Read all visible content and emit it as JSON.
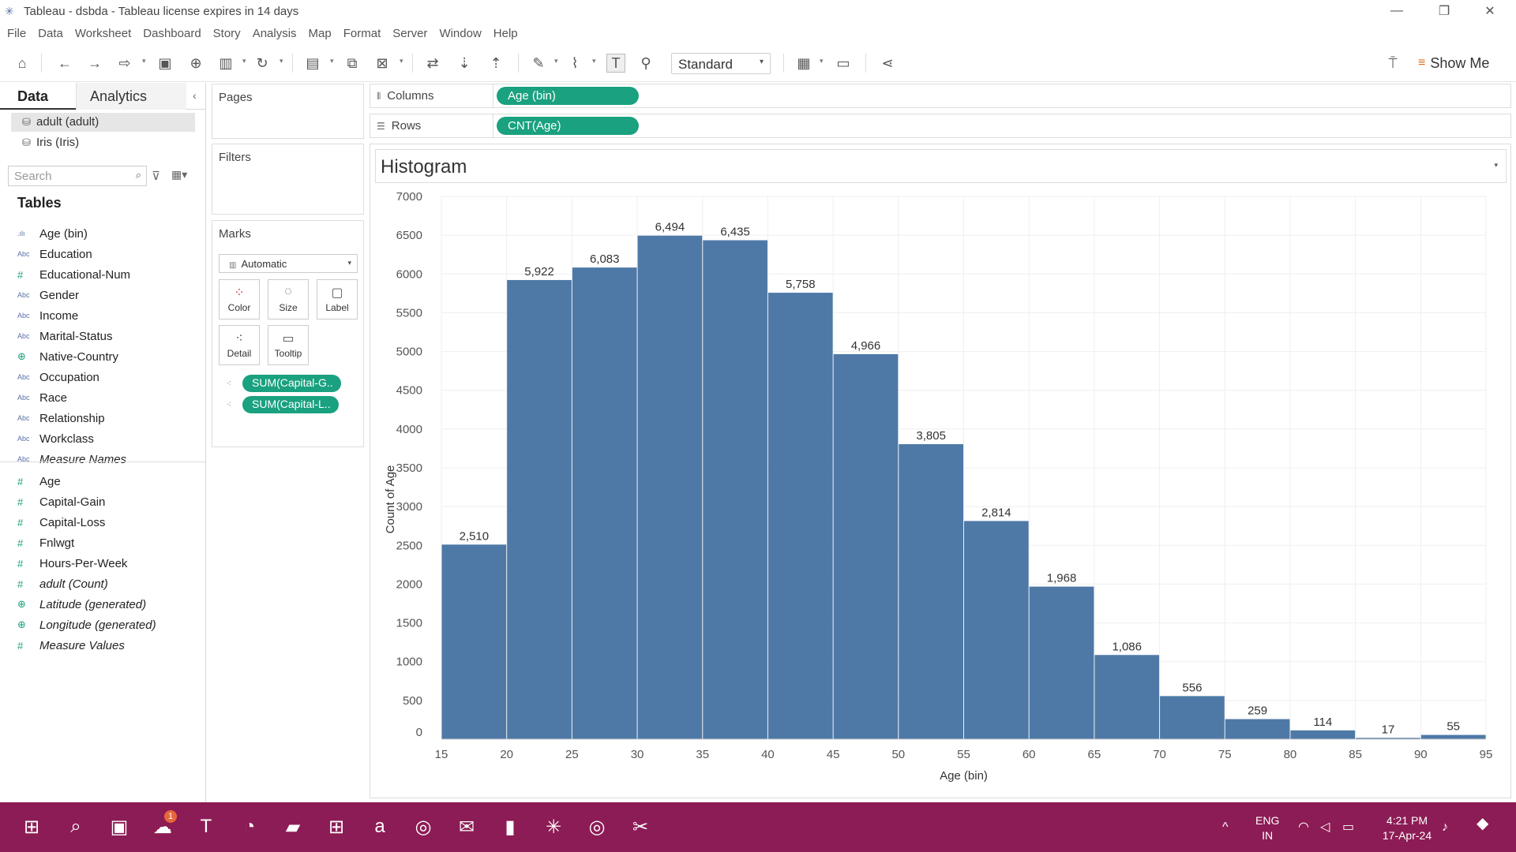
{
  "window": {
    "title": "Tableau - dsbda - Tableau license expires in 14 days",
    "minimize": "—",
    "restore": "❐",
    "close": "✕"
  },
  "menu": [
    "File",
    "Data",
    "Worksheet",
    "Dashboard",
    "Story",
    "Analysis",
    "Map",
    "Format",
    "Server",
    "Window",
    "Help"
  ],
  "toolbar": {
    "fit_value": "Standard",
    "show_me_label": "Show Me"
  },
  "data_pane": {
    "tab_data": "Data",
    "tab_analytics": "Analytics",
    "datasources": [
      "adult (adult)",
      "Iris (Iris)"
    ],
    "search_placeholder": "Search",
    "tables_heading": "Tables",
    "dimensions": [
      {
        "label": "Age (bin)",
        "icon": "bin-icon"
      },
      {
        "label": "Education",
        "icon": "string-icon"
      },
      {
        "label": "Educational-Num",
        "icon": "number-icon"
      },
      {
        "label": "Gender",
        "icon": "string-icon"
      },
      {
        "label": "Income",
        "icon": "string-icon"
      },
      {
        "label": "Marital-Status",
        "icon": "string-icon"
      },
      {
        "label": "Native-Country",
        "icon": "globe-icon"
      },
      {
        "label": "Occupation",
        "icon": "string-icon"
      },
      {
        "label": "Race",
        "icon": "string-icon"
      },
      {
        "label": "Relationship",
        "icon": "string-icon"
      },
      {
        "label": "Workclass",
        "icon": "string-icon"
      },
      {
        "label": "Measure Names",
        "icon": "string-icon"
      }
    ],
    "measures": [
      {
        "label": "Age",
        "icon": "number-icon"
      },
      {
        "label": "Capital-Gain",
        "icon": "number-icon"
      },
      {
        "label": "Capital-Loss",
        "icon": "number-icon"
      },
      {
        "label": "Fnlwgt",
        "icon": "number-icon"
      },
      {
        "label": "Hours-Per-Week",
        "icon": "number-icon"
      },
      {
        "label": "adult (Count)",
        "icon": "number-icon"
      },
      {
        "label": "Latitude (generated)",
        "icon": "globe-icon"
      },
      {
        "label": "Longitude (generated)",
        "icon": "globe-icon"
      },
      {
        "label": "Measure Values",
        "icon": "number-icon"
      }
    ]
  },
  "cards": {
    "pages": "Pages",
    "filters": "Filters",
    "marks": "Marks",
    "mark_type": "Automatic",
    "mark_buttons": [
      "Color",
      "Size",
      "Label",
      "Detail",
      "Tooltip"
    ],
    "mark_pills": [
      "SUM(Capital-G..",
      "SUM(Capital-L.."
    ]
  },
  "shelves": {
    "columns_label": "Columns",
    "columns_pill": "Age (bin)",
    "rows_label": "Rows",
    "rows_pill": "CNT(Age)"
  },
  "view": {
    "title": "Histogram"
  },
  "colors": {
    "bar": "#4e79a7",
    "pill": "#1aa17f",
    "taskbar": "#8c1c55"
  },
  "chart_data": {
    "type": "bar",
    "title": "Histogram",
    "xlabel": "Age (bin)",
    "ylabel": "Count of Age",
    "bin_width": 5,
    "bins": [
      15,
      20,
      25,
      30,
      35,
      40,
      45,
      50,
      55,
      60,
      65,
      70,
      75,
      80,
      85,
      90
    ],
    "values": [
      2510,
      5922,
      6083,
      6494,
      6435,
      5758,
      4966,
      3805,
      2814,
      1968,
      1086,
      556,
      259,
      114,
      17,
      55
    ],
    "value_labels": [
      "2,510",
      "5,922",
      "6,083",
      "6,494",
      "6,435",
      "5,758",
      "4,966",
      "3,805",
      "2,814",
      "1,968",
      "1,086",
      "556",
      "259",
      "114",
      "17",
      "55"
    ],
    "x_ticks": [
      "15",
      "20",
      "25",
      "30",
      "35",
      "40",
      "45",
      "50",
      "55",
      "60",
      "65",
      "70",
      "75",
      "80",
      "85",
      "90",
      "95"
    ],
    "y_ticks": [
      "0",
      "500",
      "1000",
      "1500",
      "2000",
      "2500",
      "3000",
      "3500",
      "4000",
      "4500",
      "5000",
      "5500",
      "6000",
      "6500",
      "7000"
    ],
    "ylim": [
      0,
      7000
    ],
    "xlim": [
      15,
      95
    ],
    "grid": true
  },
  "taskbar": {
    "notification_badge": "1",
    "language": "ENG",
    "region": "IN",
    "time": "4:21 PM",
    "date": "17-Apr-24"
  }
}
